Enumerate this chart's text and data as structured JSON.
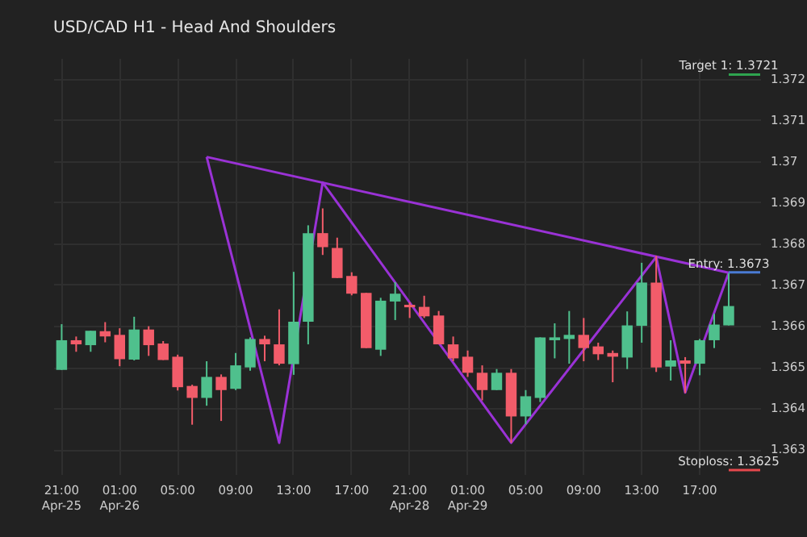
{
  "chart_data": {
    "type": "candlestick",
    "title": "USD/CAD H1 - Head And Shoulders",
    "categories": [
      "21:00\nApr-25",
      null,
      null,
      null,
      "01:00\nApr-26",
      null,
      null,
      null,
      "05:00",
      null,
      null,
      null,
      "09:00",
      null,
      null,
      null,
      "13:00",
      null,
      null,
      null,
      "17:00",
      null,
      null,
      null,
      "21:00\nApr-28",
      null,
      null,
      null,
      "01:00\nApr-29",
      null,
      null,
      null,
      "05:00",
      null,
      null,
      null,
      "09:00",
      null,
      null,
      null,
      "13:00",
      null,
      null,
      null,
      "17:00",
      null,
      null
    ],
    "ohlc": [
      [
        1.36493,
        1.36604,
        1.36493,
        1.36565
      ],
      [
        1.36565,
        1.36574,
        1.36537,
        1.36555
      ],
      [
        1.36553,
        1.36588,
        1.36537,
        1.36588
      ],
      [
        1.36587,
        1.36609,
        1.3656,
        1.36574
      ],
      [
        1.36578,
        1.36594,
        1.36502,
        1.36519
      ],
      [
        1.36518,
        1.36622,
        1.36516,
        1.36591
      ],
      [
        1.36591,
        1.36599,
        1.36527,
        1.36553
      ],
      [
        1.36557,
        1.36563,
        1.36517,
        1.36517
      ],
      [
        1.36525,
        1.3653,
        1.36443,
        1.36451
      ],
      [
        1.36454,
        1.36457,
        1.3636,
        1.36425
      ],
      [
        1.36425,
        1.36514,
        1.36406,
        1.36476
      ],
      [
        1.36476,
        1.36482,
        1.36369,
        1.36444
      ],
      [
        1.36447,
        1.36534,
        1.36444,
        1.36504
      ],
      [
        1.36499,
        1.36572,
        1.36491,
        1.36568
      ],
      [
        1.36568,
        1.36576,
        1.36514,
        1.36555
      ],
      [
        1.36555,
        1.3664,
        1.36504,
        1.36508
      ],
      [
        1.36507,
        1.36731,
        1.36481,
        1.3661
      ],
      [
        1.3661,
        1.36844,
        1.36555,
        1.36825
      ],
      [
        1.36825,
        1.36885,
        1.36772,
        1.36791
      ],
      [
        1.36789,
        1.36814,
        1.36716,
        1.36716
      ],
      [
        1.36721,
        1.3673,
        1.36674,
        1.36678
      ],
      [
        1.3668,
        1.3668,
        1.36546,
        1.36546
      ],
      [
        1.36542,
        1.36668,
        1.36527,
        1.36661
      ],
      [
        1.36659,
        1.36706,
        1.36614,
        1.36678
      ],
      [
        1.36651,
        1.36657,
        1.36619,
        1.36645
      ],
      [
        1.36646,
        1.36673,
        1.36619,
        1.36623
      ],
      [
        1.36625,
        1.36636,
        1.36555,
        1.36555
      ],
      [
        1.36555,
        1.36574,
        1.36514,
        1.36521
      ],
      [
        1.36525,
        1.3654,
        1.36476,
        1.36486
      ],
      [
        1.36486,
        1.36504,
        1.36419,
        1.36444
      ],
      [
        1.36444,
        1.36495,
        1.36444,
        1.36486
      ],
      [
        1.36486,
        1.36495,
        1.36316,
        1.3638
      ],
      [
        1.3638,
        1.36444,
        1.36361,
        1.36429
      ],
      [
        1.36425,
        1.36572,
        1.36415,
        1.36572
      ],
      [
        1.36565,
        1.36606,
        1.36521,
        1.36572
      ],
      [
        1.36568,
        1.36636,
        1.36508,
        1.36578
      ],
      [
        1.36578,
        1.36619,
        1.36514,
        1.36546
      ],
      [
        1.3655,
        1.36559,
        1.36517,
        1.36531
      ],
      [
        1.36534,
        1.3654,
        1.36463,
        1.36525
      ],
      [
        1.36523,
        1.36635,
        1.36495,
        1.36601
      ],
      [
        1.366,
        1.36753,
        1.36559,
        1.36705
      ],
      [
        1.36705,
        1.3677,
        1.36488,
        1.36499
      ],
      [
        1.36501,
        1.36565,
        1.36467,
        1.36516
      ],
      [
        1.36516,
        1.36524,
        1.36437,
        1.36508
      ],
      [
        1.36508,
        1.36568,
        1.3648,
        1.36565
      ],
      [
        1.36565,
        1.36629,
        1.36546,
        1.36603
      ],
      [
        1.36601,
        1.36728,
        1.36601,
        1.36648
      ]
    ],
    "colors": [
      "#4fc08d",
      "#f25c6a",
      "#4fc08d",
      "#f25c6a",
      "#f25c6a",
      "#4fc08d",
      "#f25c6a",
      "#f25c6a",
      "#f25c6a",
      "#f25c6a",
      "#4fc08d",
      "#f25c6a",
      "#4fc08d",
      "#4fc08d",
      "#f25c6a",
      "#f25c6a",
      "#4fc08d",
      "#4fc08d",
      "#f25c6a",
      "#f25c6a",
      "#f25c6a",
      "#f25c6a",
      "#4fc08d",
      "#4fc08d",
      "#f25c6a",
      "#f25c6a",
      "#f25c6a",
      "#f25c6a",
      "#f25c6a",
      "#f25c6a",
      "#4fc08d",
      "#f25c6a",
      "#4fc08d",
      "#4fc08d",
      "#4fc08d",
      "#4fc08d",
      "#f25c6a",
      "#f25c6a",
      "#f25c6a",
      "#4fc08d",
      "#4fc08d",
      "#f25c6a",
      "#4fc08d",
      "#f25c6a",
      "#4fc08d",
      "#4fc08d",
      "#4fc08d"
    ],
    "series": [
      {
        "type": "line",
        "color": "#9a32d6",
        "values": [
          null,
          null,
          null,
          null,
          null,
          null,
          null,
          null,
          null,
          null,
          1.3701,
          null,
          null,
          null,
          null,
          1.36316,
          null,
          null,
          1.36948,
          null,
          null,
          null,
          null,
          null,
          null,
          null,
          null,
          null,
          null,
          null,
          null,
          1.36316,
          null,
          null,
          null,
          null,
          null,
          null,
          null,
          null,
          null,
          1.36767,
          null,
          1.36438,
          null,
          null,
          1.36729
        ]
      },
      {
        "type": "line",
        "color": "#9a32d6",
        "values": [
          null,
          null,
          null,
          null,
          null,
          null,
          null,
          null,
          null,
          null,
          1.3701,
          null,
          null,
          null,
          null,
          null,
          null,
          null,
          null,
          null,
          null,
          null,
          null,
          null,
          null,
          null,
          null,
          null,
          null,
          null,
          null,
          null,
          null,
          null,
          null,
          null,
          null,
          null,
          null,
          null,
          null,
          null,
          null,
          null,
          null,
          null,
          1.36729
        ]
      }
    ],
    "ref_lines": [
      {
        "axis": "y",
        "value": 1.3721,
        "label": "Target 1: 1.3721",
        "color": "#2ea44f"
      },
      {
        "axis": "y",
        "value": 1.3673,
        "label": "Entry: 1.3673",
        "color": "#4a7bd4"
      },
      {
        "axis": "y",
        "value": 1.3625,
        "label": "Stoploss: 1.3625",
        "color": "#e5484d"
      }
    ],
    "ylim": [
      1.3624,
      1.3725
    ],
    "yticks": [
      1.363,
      1.364,
      1.365,
      1.366,
      1.367,
      1.368,
      1.369,
      1.37,
      1.371,
      1.372
    ],
    "grid": true
  }
}
